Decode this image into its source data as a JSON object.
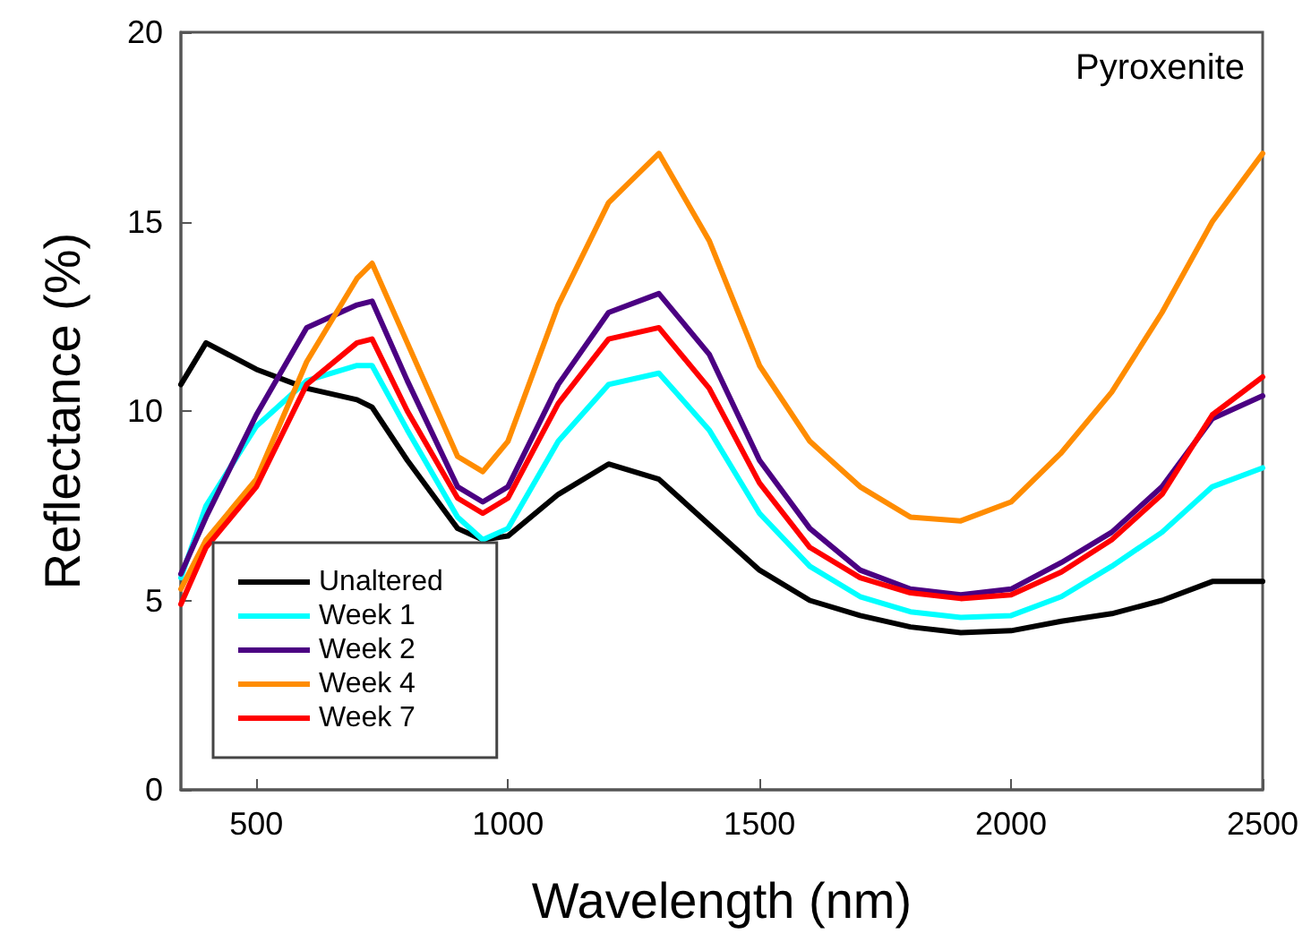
{
  "chart_data": {
    "type": "line",
    "xlabel": "Wavelength (nm)",
    "ylabel": "Reflectance (%)",
    "annotations": [
      "Pyroxenite"
    ],
    "x": [
      350,
      400,
      500,
      600,
      700,
      730,
      800,
      900,
      950,
      1000,
      1100,
      1200,
      1300,
      1400,
      1500,
      1600,
      1700,
      1800,
      1900,
      2000,
      2100,
      2200,
      2300,
      2400,
      2500
    ],
    "xlim": [
      350,
      2500
    ],
    "xticks": [
      500,
      1000,
      1500,
      2000,
      2500
    ],
    "ylim": [
      0,
      20
    ],
    "yticks": [
      0,
      5,
      10,
      15,
      20
    ],
    "grid": false,
    "legend": "bottom left",
    "line_style": "solid",
    "marker": "none",
    "series": [
      {
        "name": "Unaltered",
        "color": "#000000",
        "values": [
          10.7,
          11.8,
          11.1,
          10.6,
          10.3,
          10.1,
          8.7,
          6.9,
          6.6,
          6.7,
          7.8,
          8.6,
          8.2,
          7.0,
          5.8,
          5.0,
          4.6,
          4.3,
          4.15,
          4.2,
          4.45,
          4.65,
          5.0,
          5.5,
          5.5
        ]
      },
      {
        "name": "Week 1",
        "color": "#00ffff",
        "values": [
          5.6,
          7.5,
          9.6,
          10.8,
          11.2,
          11.2,
          9.5,
          7.2,
          6.6,
          6.9,
          9.2,
          10.7,
          11.0,
          9.5,
          7.3,
          5.9,
          5.1,
          4.7,
          4.55,
          4.6,
          5.1,
          5.9,
          6.8,
          8.0,
          8.5
        ]
      },
      {
        "name": "Week 2",
        "color": "#4b0082",
        "values": [
          5.7,
          7.2,
          9.9,
          12.2,
          12.8,
          12.9,
          10.8,
          8.0,
          7.6,
          8.0,
          10.7,
          12.6,
          13.1,
          11.5,
          8.7,
          6.9,
          5.8,
          5.3,
          5.15,
          5.3,
          6.0,
          6.8,
          8.0,
          9.8,
          10.4
        ]
      },
      {
        "name": "Week 4",
        "color": "#ff8c00",
        "values": [
          5.3,
          6.6,
          8.2,
          11.3,
          13.5,
          13.9,
          11.8,
          8.8,
          8.4,
          9.2,
          12.8,
          15.5,
          16.8,
          14.5,
          11.2,
          9.2,
          8.0,
          7.2,
          7.1,
          7.6,
          8.9,
          10.5,
          12.6,
          15.0,
          16.8
        ]
      },
      {
        "name": "Week 7",
        "color": "#ff0000",
        "values": [
          4.9,
          6.4,
          8.0,
          10.7,
          11.8,
          11.9,
          10.0,
          7.7,
          7.3,
          7.7,
          10.2,
          11.9,
          12.2,
          10.6,
          8.1,
          6.4,
          5.6,
          5.2,
          5.05,
          5.15,
          5.75,
          6.6,
          7.8,
          9.9,
          10.9
        ]
      }
    ]
  }
}
